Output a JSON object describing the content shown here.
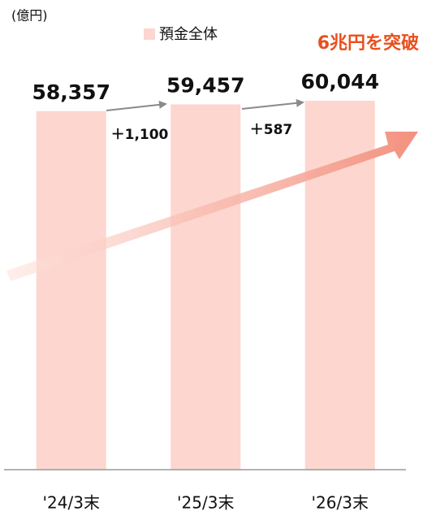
{
  "chart_data": {
    "type": "bar",
    "unit_label": "(億円)",
    "title": "6兆円を突破",
    "categories": [
      "'24/3末",
      "'25/3末",
      "'26/3末"
    ],
    "series": [
      {
        "name": "預金全体",
        "color": "#fdd6cf",
        "values": [
          58357,
          59457,
          60044
        ],
        "value_labels": [
          "58,357",
          "59,457",
          "60,044"
        ]
      }
    ],
    "annotations": [
      "＋1,100",
      "＋587"
    ],
    "ylim": [
      0,
      73800
    ],
    "title_color": "#e8501e"
  }
}
